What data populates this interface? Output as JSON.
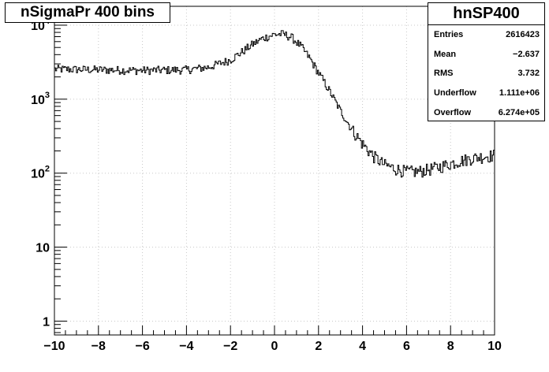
{
  "title": "nSigmaPr 400 bins",
  "stats": {
    "name": "hnSP400",
    "rows": [
      {
        "label": "Entries",
        "value": "2616423"
      },
      {
        "label": "Mean",
        "value": "−2.637"
      },
      {
        "label": "RMS",
        "value": "3.732"
      },
      {
        "label": "Underflow",
        "value": "1.111e+06"
      },
      {
        "label": "Overflow",
        "value": "6.274e+05"
      }
    ]
  },
  "chart_data": {
    "type": "histogram",
    "title": "nSigmaPr 400 bins",
    "xlabel": "",
    "ylabel": "",
    "xlim": [
      -10,
      10
    ],
    "ylim": [
      0.65,
      18000
    ],
    "log_y": true,
    "grid": true,
    "x_ticks": [
      -10,
      -8,
      -6,
      -4,
      -2,
      0,
      2,
      4,
      6,
      8,
      10
    ],
    "x_tick_labels": [
      "−10",
      "−8",
      "−6",
      "−4",
      "−2",
      "0",
      "2",
      "4",
      "6",
      "8",
      "10"
    ],
    "y_ticks": [
      1,
      10,
      100,
      1000,
      10000
    ],
    "y_tick_labels": [
      {
        "base": "1",
        "exp": ""
      },
      {
        "base": "10",
        "exp": ""
      },
      {
        "base": "10",
        "exp": "2"
      },
      {
        "base": "10",
        "exp": "3"
      },
      {
        "base": "10",
        "exp": "4"
      }
    ],
    "bin_count": 400,
    "profile": [
      {
        "x": -10.0,
        "y": 2550
      },
      {
        "x": -8.0,
        "y": 2500
      },
      {
        "x": -6.0,
        "y": 2450
      },
      {
        "x": -4.0,
        "y": 2500
      },
      {
        "x": -3.0,
        "y": 2700
      },
      {
        "x": -2.0,
        "y": 3400
      },
      {
        "x": -1.5,
        "y": 4300
      },
      {
        "x": -1.0,
        "y": 5500
      },
      {
        "x": -0.5,
        "y": 6700
      },
      {
        "x": 0.0,
        "y": 7500
      },
      {
        "x": 0.4,
        "y": 7600
      },
      {
        "x": 0.8,
        "y": 6800
      },
      {
        "x": 1.2,
        "y": 5200
      },
      {
        "x": 1.6,
        "y": 3600
      },
      {
        "x": 2.0,
        "y": 2300
      },
      {
        "x": 2.5,
        "y": 1300
      },
      {
        "x": 3.0,
        "y": 700
      },
      {
        "x": 3.5,
        "y": 400
      },
      {
        "x": 4.0,
        "y": 250
      },
      {
        "x": 4.5,
        "y": 170
      },
      {
        "x": 5.0,
        "y": 130
      },
      {
        "x": 5.5,
        "y": 115
      },
      {
        "x": 6.0,
        "y": 105
      },
      {
        "x": 6.5,
        "y": 105
      },
      {
        "x": 7.0,
        "y": 112
      },
      {
        "x": 7.5,
        "y": 122
      },
      {
        "x": 8.0,
        "y": 135
      },
      {
        "x": 8.5,
        "y": 148
      },
      {
        "x": 9.0,
        "y": 160
      },
      {
        "x": 9.5,
        "y": 168
      },
      {
        "x": 10.0,
        "y": 175
      }
    ],
    "noise": 0.13
  }
}
